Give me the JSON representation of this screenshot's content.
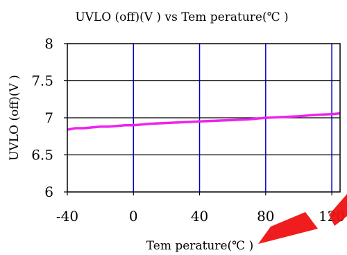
{
  "chart_data": {
    "type": "line",
    "title": "UVLO (off)(V ) vs Tem perature(℃ )",
    "xlabel": "Tem perature(℃ )",
    "ylabel": "UVLO (off)(V )",
    "xlim": [
      -40,
      125
    ],
    "ylim": [
      6,
      8
    ],
    "x_ticks": [
      -40,
      0,
      40,
      80,
      120
    ],
    "x_tick_labels": [
      "-40",
      "0",
      "40",
      "80",
      "120"
    ],
    "y_ticks": [
      6,
      6.5,
      7,
      7.5,
      8
    ],
    "y_tick_labels": [
      "6",
      "6.5",
      "7",
      "7.5",
      "8"
    ],
    "grid": {
      "vertical": true,
      "horizontal": true,
      "vertical_color": "#0000cc",
      "horizontal_color": "#000000"
    },
    "legend": "none",
    "series": [
      {
        "color": "#ee22ee",
        "x": [
          -40,
          -35,
          -30,
          -25,
          -20,
          -15,
          -10,
          -5,
          0,
          10,
          20,
          30,
          40,
          50,
          60,
          70,
          80,
          90,
          100,
          110,
          120,
          125
        ],
        "values": [
          6.84,
          6.86,
          6.86,
          6.87,
          6.88,
          6.88,
          6.89,
          6.9,
          6.9,
          6.92,
          6.93,
          6.94,
          6.95,
          6.96,
          6.97,
          6.98,
          7.0,
          7.01,
          7.02,
          7.04,
          7.05,
          7.06
        ]
      }
    ]
  },
  "decoration": {
    "stamp_color": "#ee1111"
  }
}
